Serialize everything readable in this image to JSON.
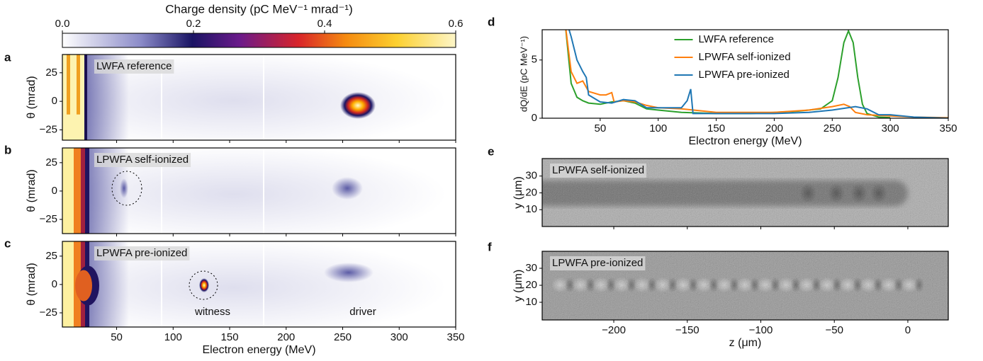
{
  "chart_data": [
    {
      "type": "colorbar",
      "title": "Charge density (pC MeV⁻¹ mrad⁻¹)",
      "xlim": [
        0,
        0.6
      ],
      "xticks": [
        {
          "value": 0,
          "label": "0.0"
        },
        {
          "value": 0.2,
          "label": "0.2"
        },
        {
          "value": 0.4,
          "label": "0.4"
        },
        {
          "value": 0.6,
          "label": "0.6"
        }
      ]
    },
    {
      "type": "heatmap",
      "panel": "a",
      "label": "LWFA reference",
      "ylabel": "θ (mrad)",
      "xlim": [
        2,
        350
      ],
      "ylim": [
        -34,
        41
      ],
      "yticks": [
        {
          "value": -25,
          "label": "−25"
        },
        0,
        25
      ]
    },
    {
      "type": "heatmap",
      "panel": "b",
      "label": "LPWFA self-ionized",
      "ylabel": "θ (mrad)",
      "xlim": [
        2,
        350
      ],
      "ylim": [
        -37.5,
        38
      ],
      "yticks": [
        {
          "value": -25,
          "label": "−25"
        },
        0,
        25
      ]
    },
    {
      "type": "heatmap",
      "panel": "c",
      "label": "LPWFA pre-ionized",
      "ylabel": "θ (mrad)",
      "xlabel": "Electron energy (MeV)",
      "xlim": [
        2,
        350
      ],
      "ylim": [
        -37.5,
        38
      ],
      "yticks": [
        {
          "value": -25,
          "label": "−25"
        },
        0,
        25
      ],
      "xticks": [
        50,
        100,
        150,
        200,
        250,
        300,
        350
      ],
      "annotations": [
        "witness",
        "driver"
      ]
    },
    {
      "type": "line",
      "panel": "d",
      "xlabel": "Electron energy (MeV)",
      "ylabel": "dQ/dE (pC MeV⁻¹)",
      "xlim": [
        0,
        350
      ],
      "ylim": [
        0,
        7.6
      ],
      "xticks": [
        50,
        100,
        150,
        200,
        250,
        300,
        350
      ],
      "yticks": [
        0,
        5
      ],
      "legend": "upper center",
      "series": [
        {
          "name": "LWFA reference",
          "color": "#2ca02c",
          "x": [
            20,
            25,
            30,
            35,
            40,
            50,
            60,
            70,
            80,
            90,
            100,
            120,
            150,
            180,
            200,
            220,
            240,
            250,
            255,
            260,
            264,
            268,
            272,
            276,
            280,
            290,
            300
          ],
          "values": [
            8,
            3,
            1.8,
            1.5,
            1.3,
            1.2,
            1.4,
            1.5,
            1.3,
            0.8,
            0.7,
            0.5,
            0.4,
            0.4,
            0.5,
            0.6,
            0.8,
            1.5,
            3.5,
            6.5,
            7.5,
            6.5,
            3.5,
            1.2,
            0.4,
            0.1,
            0.05
          ]
        },
        {
          "name": "LPWFA self-ionized",
          "color": "#ff7f0e",
          "x": [
            20,
            25,
            30,
            35,
            40,
            50,
            55,
            60,
            62,
            70,
            80,
            90,
            100,
            120,
            150,
            200,
            230,
            250,
            260,
            265,
            270,
            280,
            300,
            320,
            350
          ],
          "values": [
            8,
            4,
            3,
            3.2,
            2.3,
            2,
            2,
            2.2,
            1.4,
            1.5,
            1.4,
            1.1,
            0.9,
            0.8,
            0.5,
            0.5,
            0.7,
            1,
            1.2,
            1,
            0.5,
            0.3,
            0.2,
            0.1,
            0.05
          ]
        },
        {
          "name": "LPWFA pre-ionized",
          "color": "#1f77b4",
          "x": [
            22,
            25,
            30,
            35,
            38,
            40,
            50,
            60,
            70,
            80,
            90,
            100,
            120,
            125,
            128,
            130,
            150,
            180,
            200,
            230,
            250,
            270,
            280,
            290,
            300,
            320,
            350
          ],
          "values": [
            8,
            7,
            5,
            4,
            3.5,
            2,
            1.4,
            1.3,
            1.6,
            1.5,
            0.9,
            0.9,
            0.9,
            1.5,
            2.5,
            0.4,
            0.4,
            0.4,
            0.4,
            0.5,
            0.7,
            1,
            0.8,
            0.3,
            0.3,
            0.1,
            0
          ]
        }
      ]
    },
    {
      "type": "image",
      "panel": "e",
      "label": "LPWFA self-ionized",
      "ylabel": "y (μm)",
      "xlim": [
        -248.7,
        27.5
      ],
      "ylim": [
        0,
        40.4
      ],
      "yticks": [
        10,
        20,
        30
      ]
    },
    {
      "type": "image",
      "panel": "f",
      "label": "LPWFA pre-ionized",
      "ylabel": "y (μm)",
      "xlabel": "z (μm)",
      "xlim": [
        -248.7,
        27.5
      ],
      "ylim": [
        -0.4,
        40
      ],
      "yticks": [
        10,
        20,
        30
      ],
      "xticks": [
        {
          "value": -200,
          "label": "−200"
        },
        {
          "value": -150,
          "label": "−150"
        },
        {
          "value": -100,
          "label": "−100"
        },
        {
          "value": -50,
          "label": "−50"
        },
        0
      ]
    }
  ]
}
